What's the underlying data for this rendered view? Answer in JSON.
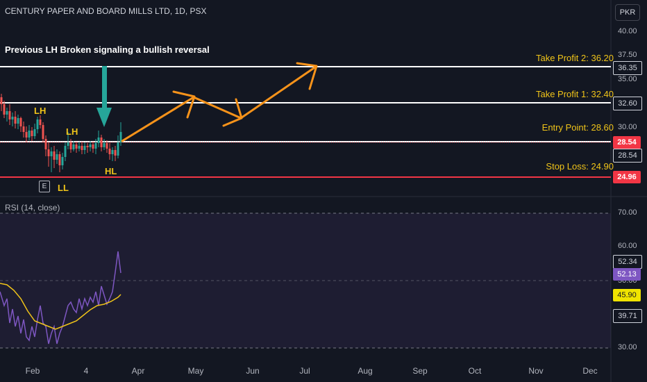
{
  "header": {
    "symbol_title": "CENTURY PAPER AND BOARD MILLS LTD, 1D, PSX",
    "currency": "PKR"
  },
  "annotation": {
    "headline": "Previous LH Broken signaling a bullish reversal"
  },
  "structure_tags": {
    "lh_1": "LH",
    "lh_2": "LH",
    "hl": "HL",
    "ll": "LL",
    "earnings_badge": "E"
  },
  "levels": {
    "take_profit_2": "Take Profit 2: 36.20",
    "take_profit_1": "Take Profit 1: 32.40",
    "entry": "Entry Point: 28.60",
    "stop_loss": "Stop Loss: 24.90"
  },
  "price_axis": {
    "ticks": [
      "40.00",
      "37.50",
      "35.00",
      "30.00"
    ],
    "boxes": {
      "tp2": "36.35",
      "tp1": "32.60",
      "last_price": "28.54",
      "last_price_2": "28.54",
      "stop": "24.96"
    }
  },
  "rsi": {
    "title": "RSI (14, close)",
    "ticks": [
      "70.00",
      "60.00",
      "50.00",
      "30.00"
    ],
    "boxes": {
      "value_a": "52.34",
      "rsi": "52.13",
      "ma": "45.90",
      "value_b": "39.71"
    }
  },
  "time_axis": {
    "labels": [
      "Feb",
      "4",
      "Apr",
      "May",
      "Jun",
      "Jul",
      "Aug",
      "Sep",
      "Oct",
      "Nov",
      "Dec"
    ]
  },
  "colors": {
    "background": "#131722",
    "up": "#26a69a",
    "down": "#ef5350",
    "arrow": "#f7931a",
    "signal_arrow": "#26a69a",
    "level_white": "#ffffff",
    "level_red": "#f23645",
    "label_yellow": "#f0c419",
    "rsi_line": "#7e57c2",
    "rsi_ma": "#f0e400"
  }
}
